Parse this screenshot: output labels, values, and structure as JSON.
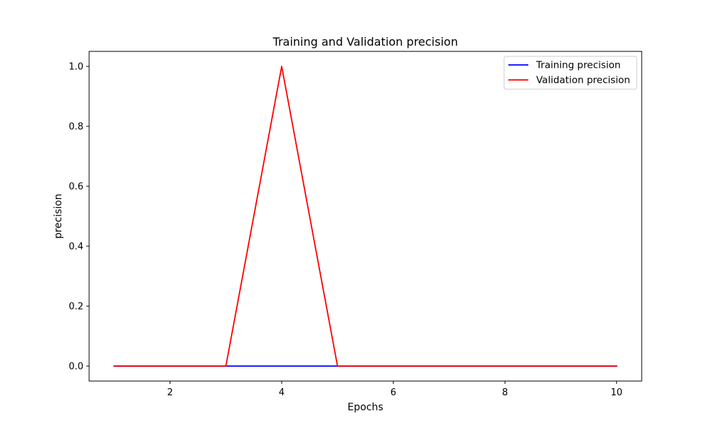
{
  "chart_data": {
    "type": "line",
    "title": "Training and Validation precision",
    "xlabel": "Epochs",
    "ylabel": "precision",
    "x": [
      1,
      2,
      3,
      4,
      5,
      6,
      7,
      8,
      9,
      10
    ],
    "xlim": [
      0.55,
      10.45
    ],
    "ylim": [
      -0.05,
      1.05
    ],
    "xticks": [
      2,
      4,
      6,
      8,
      10
    ],
    "yticks": [
      0.0,
      0.2,
      0.4,
      0.6,
      0.8,
      1.0
    ],
    "xtick_labels": [
      "2",
      "4",
      "6",
      "8",
      "10"
    ],
    "ytick_labels": [
      "0.0",
      "0.2",
      "0.4",
      "0.6",
      "0.8",
      "1.0"
    ],
    "grid": false,
    "legend_position": "top-right",
    "series": [
      {
        "name": "Training precision",
        "color": "#0000ff",
        "values": [
          0,
          0,
          0,
          0,
          0,
          0,
          0,
          0,
          0,
          0
        ]
      },
      {
        "name": "Validation precision",
        "color": "#ff0000",
        "values": [
          0,
          0,
          0,
          1.0,
          0,
          0,
          0,
          0,
          0,
          0
        ]
      }
    ]
  }
}
